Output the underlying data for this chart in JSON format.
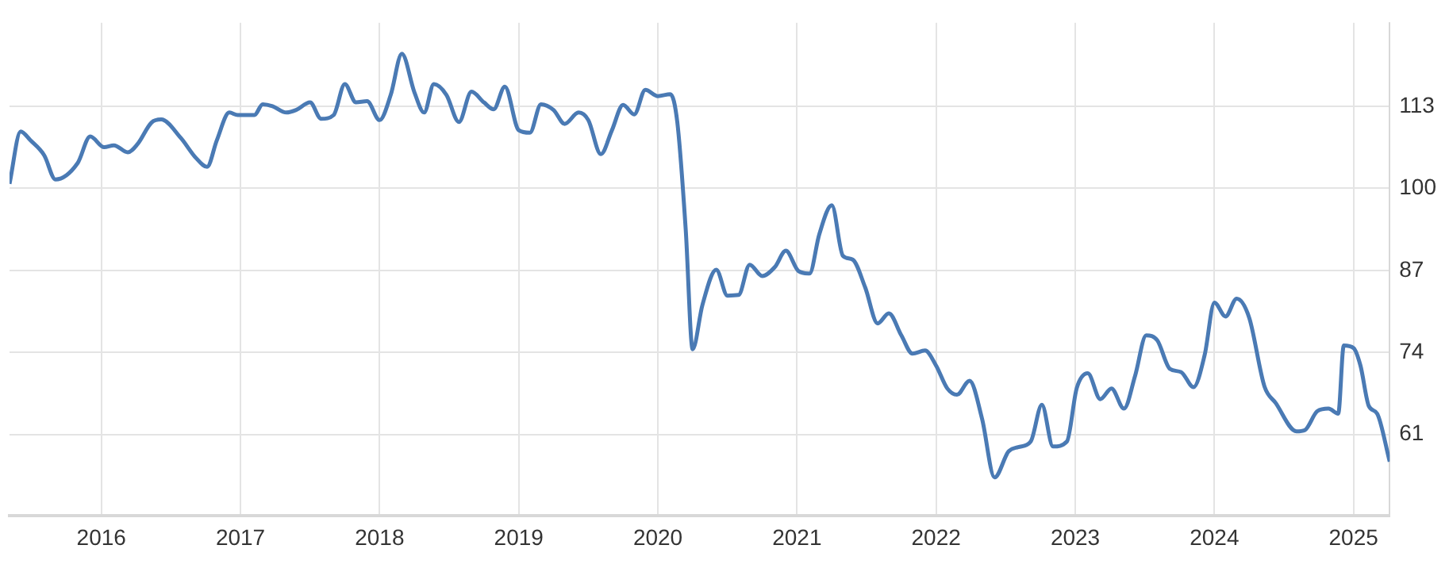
{
  "chart_data": {
    "type": "line",
    "color": "#4a7ab4",
    "marker": "none",
    "grid": true,
    "legend": false,
    "x": [
      2015.34,
      2015.42,
      2015.49,
      2015.59,
      2015.67,
      2015.83,
      2015.92,
      2016.02,
      2016.09,
      2016.19,
      2016.26,
      2016.36,
      2016.43,
      2016.57,
      2016.68,
      2016.76,
      2016.83,
      2016.92,
      2016.98,
      2017.1,
      2017.16,
      2017.23,
      2017.33,
      2017.4,
      2017.5,
      2017.58,
      2017.67,
      2017.75,
      2017.83,
      2017.91,
      2018.0,
      2018.08,
      2018.16,
      2018.25,
      2018.32,
      2018.39,
      2018.48,
      2018.57,
      2018.66,
      2018.75,
      2018.82,
      2018.9,
      2019.0,
      2019.08,
      2019.16,
      2019.25,
      2019.33,
      2019.43,
      2019.5,
      2019.59,
      2019.67,
      2019.75,
      2019.83,
      2019.91,
      2020.0,
      2020.09,
      2020.14,
      2020.2,
      2020.25,
      2020.32,
      2020.42,
      2020.5,
      2020.58,
      2020.66,
      2020.75,
      2020.84,
      2020.92,
      2021.01,
      2021.09,
      2021.16,
      2021.25,
      2021.33,
      2021.4,
      2021.49,
      2021.58,
      2021.66,
      2021.75,
      2021.83,
      2021.92,
      2022.0,
      2022.08,
      2022.15,
      2022.24,
      2022.33,
      2022.42,
      2022.52,
      2022.59,
      2022.68,
      2022.76,
      2022.84,
      2022.94,
      2023.01,
      2023.09,
      2023.18,
      2023.26,
      2023.35,
      2023.43,
      2023.51,
      2023.59,
      2023.68,
      2023.76,
      2023.85,
      2023.93,
      2024.0,
      2024.08,
      2024.16,
      2024.25,
      2024.36,
      2024.44,
      2024.59,
      2024.65,
      2024.74,
      2024.82,
      2024.89,
      2024.93,
      2025.0,
      2025.05,
      2025.11,
      2025.17,
      2025.26
    ],
    "values": [
      100.7,
      109.0,
      107.6,
      105.2,
      101.4,
      104.0,
      108.2,
      106.5,
      106.8,
      105.7,
      107.0,
      110.4,
      110.9,
      108.0,
      104.8,
      103.4,
      107.6,
      112.0,
      111.6,
      111.6,
      113.3,
      113.0,
      112.0,
      112.4,
      113.6,
      111.0,
      111.6,
      116.5,
      113.6,
      113.8,
      110.8,
      114.8,
      121.3,
      115.2,
      112.0,
      116.5,
      114.8,
      110.5,
      115.3,
      113.6,
      112.5,
      116.1,
      109.2,
      108.8,
      113.3,
      112.4,
      110.2,
      112.0,
      110.8,
      105.4,
      109.2,
      113.2,
      111.7,
      115.6,
      114.6,
      114.9,
      110.4,
      93.5,
      74.5,
      81.5,
      87.1,
      83.0,
      83.1,
      87.9,
      86.1,
      87.5,
      90.1,
      86.9,
      86.5,
      92.7,
      97.3,
      89.3,
      88.7,
      84.3,
      78.6,
      80.2,
      76.7,
      73.8,
      74.3,
      71.9,
      68.3,
      67.3,
      69.5,
      63.5,
      54.2,
      58.3,
      59.0,
      59.9,
      65.7,
      59.1,
      59.9,
      68.3,
      70.7,
      66.6,
      68.3,
      65.1,
      70.3,
      76.7,
      75.9,
      71.4,
      70.9,
      68.5,
      73.6,
      81.9,
      79.7,
      82.5,
      79.5,
      68.6,
      66.0,
      61.5,
      61.7,
      64.7,
      65.1,
      64.3,
      75.1,
      74.7,
      71.9,
      65.5,
      64.3,
      56.7
    ],
    "xlim": [
      2015.34,
      2025.26
    ],
    "xticks": [
      2016,
      2017,
      2018,
      2019,
      2020,
      2021,
      2022,
      2023,
      2024,
      2025
    ],
    "ylim": [
      48.1,
      126.2
    ],
    "yticks": [
      61,
      74,
      87,
      100,
      113
    ]
  }
}
